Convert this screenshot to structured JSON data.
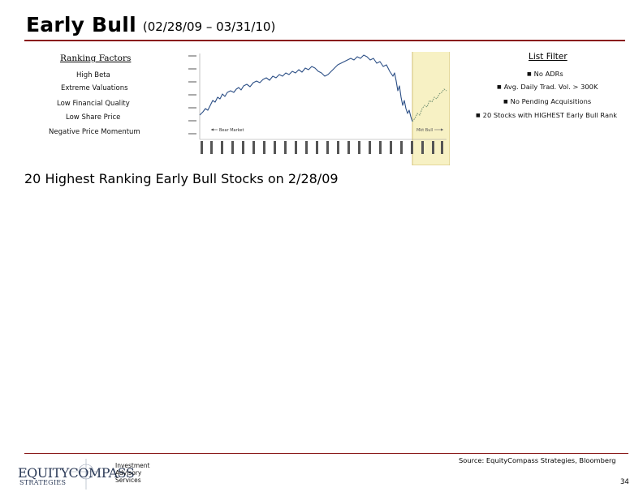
{
  "title": {
    "main": "Early Bull",
    "dates": "(02/28/09 – 03/31/10)"
  },
  "ranking_factors": {
    "heading": "Ranking Factors",
    "items": [
      "High Beta",
      "Extreme Valuations",
      "Low Financial Quality",
      "Low Share Price",
      "Negative Price Momentum"
    ]
  },
  "list_filter": {
    "heading": "List Filter",
    "items": [
      "No ADRs",
      "Avg. Daily Trad. Vol. > 300K",
      "No Pending Acquisitions",
      "20 Stocks with HIGHEST Early Bull Rank"
    ]
  },
  "chart": {
    "bear_label": "Bear Market",
    "bull_label": "Mkt Bull",
    "highlight_color": "#f7f1c4",
    "highlight_border": "#c9b35a",
    "line_color": "#2c4f86"
  },
  "subtitle": "20 Highest Ranking Early Bull Stocks on 2/28/09",
  "footer": {
    "source": "Source: EquityCompass Strategies, Bloomberg",
    "page": "34",
    "logo_main": "EQUITYCOMPASS",
    "logo_sub": "STRATEGIES",
    "service_lines": [
      "Investment",
      "Advisory",
      "Services"
    ]
  }
}
